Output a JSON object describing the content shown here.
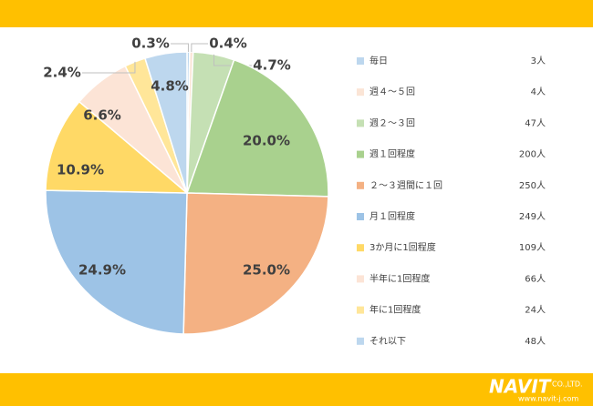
{
  "chart_data": {
    "type": "pie",
    "categories": [
      "毎日",
      "週４～５回",
      "週２～３回",
      "週１回程度",
      "２～３週間に１回",
      "月１回程度",
      "3か月に1回程度",
      "半年に1回程度",
      "年に1回程度",
      "それ以下"
    ],
    "values": [
      0.3,
      0.4,
      4.7,
      20.0,
      25.0,
      24.9,
      10.9,
      6.6,
      2.4,
      4.8
    ],
    "value_labels": [
      "0.3%",
      "0.4%",
      "4.7%",
      "20.0%",
      "25.0%",
      "24.9%",
      "10.9%",
      "6.6%",
      "2.4%",
      "4.8%"
    ],
    "counts": [
      3,
      4,
      47,
      200,
      250,
      249,
      109,
      66,
      24,
      48
    ],
    "count_labels": [
      "3人",
      "4人",
      "47人",
      "200人",
      "250人",
      "249人",
      "109人",
      "66人",
      "24人",
      "48人"
    ],
    "colors": [
      "#bdd7ee",
      "#fbe5d6",
      "#c5e0b4",
      "#a9d18e",
      "#f4b183",
      "#9dc3e6",
      "#ffd966",
      "#fce4d6",
      "#ffe699",
      "#bdd7ee"
    ],
    "legend": "right"
  },
  "footer": {
    "logo": "NAVIT",
    "company": "CO.,LTD.",
    "url": "www.navit-j.com"
  }
}
